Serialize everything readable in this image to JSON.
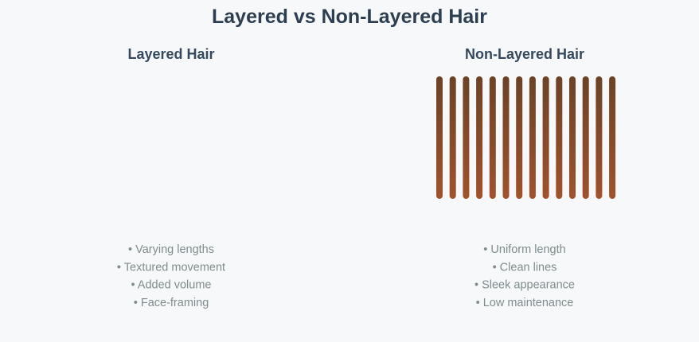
{
  "title": "Layered vs Non-Layered Hair",
  "panels": [
    {
      "heading": "Layered Hair",
      "points": [
        "• Varying lengths",
        "• Textured movement",
        "• Added volume",
        "• Face-framing"
      ]
    },
    {
      "heading": "Non-Layered Hair",
      "points": [
        "• Uniform length",
        "• Clean lines",
        "• Sleek appearance",
        "• Low maintenance"
      ]
    }
  ]
}
